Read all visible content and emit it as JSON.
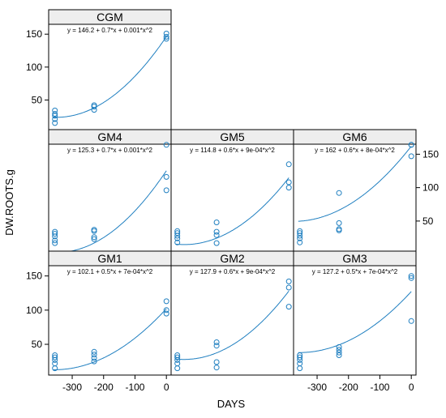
{
  "chart_data": {
    "type": "scatter",
    "xlabel": "DAYS",
    "ylabel": "DW.ROOTS.g",
    "xlim": [
      -375,
      15
    ],
    "ylim": [
      5,
      165
    ],
    "x_ticks": [
      -300,
      -200,
      -100,
      0
    ],
    "y_ticks": [
      50,
      100,
      150
    ],
    "x_tick_labels": [
      "-300",
      "-200",
      "-100",
      "0"
    ],
    "y_tick_labels": [
      "50",
      "100",
      "150"
    ],
    "point_color": "#1f7fc0",
    "line_color": "#1f7fc0",
    "strip_color": "#eeeeee",
    "panels": [
      {
        "name": "CGM",
        "equation": "y = 146.2 + 0.7*x + 0.001*x^2",
        "coef": [
          146.2,
          0.7,
          0.001
        ],
        "points": [
          [
            -355,
            15
          ],
          [
            -355,
            21
          ],
          [
            -355,
            26
          ],
          [
            -355,
            29
          ],
          [
            -355,
            34
          ],
          [
            -230,
            35
          ],
          [
            -230,
            40
          ],
          [
            -230,
            42
          ],
          [
            0,
            143
          ],
          [
            0,
            146
          ],
          [
            0,
            151
          ]
        ]
      },
      {
        "name": "GM4",
        "equation": "y = 125.3 + 0.7*x + 0.001*x^2",
        "coef": [
          125.3,
          0.7,
          0.001
        ],
        "points": [
          [
            -355,
            17
          ],
          [
            -355,
            21
          ],
          [
            -355,
            27
          ],
          [
            -355,
            31
          ],
          [
            -355,
            34
          ],
          [
            -230,
            23
          ],
          [
            -230,
            26
          ],
          [
            -230,
            35
          ],
          [
            -230,
            37
          ],
          [
            0,
            96
          ],
          [
            0,
            116
          ],
          [
            0,
            164
          ]
        ]
      },
      {
        "name": "GM5",
        "equation": "y = 114.8 + 0.6*x + 9e-04*x^2",
        "coef": [
          114.8,
          0.6,
          0.0009
        ],
        "points": [
          [
            -355,
            18
          ],
          [
            -355,
            24
          ],
          [
            -355,
            28
          ],
          [
            -355,
            32
          ],
          [
            -355,
            35
          ],
          [
            -230,
            17
          ],
          [
            -230,
            29
          ],
          [
            -230,
            34
          ],
          [
            -230,
            48
          ],
          [
            0,
            100
          ],
          [
            0,
            108
          ],
          [
            0,
            135
          ]
        ]
      },
      {
        "name": "GM6",
        "equation": "y = 162 + 0.6*x + 8e-04*x^2",
        "coef": [
          162,
          0.6,
          0.0008
        ],
        "points": [
          [
            -355,
            18
          ],
          [
            -355,
            24
          ],
          [
            -355,
            28
          ],
          [
            -355,
            32
          ],
          [
            -355,
            35
          ],
          [
            -230,
            36
          ],
          [
            -230,
            38
          ],
          [
            -230,
            47
          ],
          [
            -230,
            92
          ],
          [
            0,
            147
          ],
          [
            0,
            166
          ],
          [
            0,
            170
          ]
        ]
      },
      {
        "name": "GM1",
        "equation": "y = 102.1 + 0.5*x + 7e-04*x^2",
        "coef": [
          102.1,
          0.5,
          0.0007
        ],
        "points": [
          [
            -355,
            15
          ],
          [
            -355,
            22
          ],
          [
            -355,
            27
          ],
          [
            -355,
            31
          ],
          [
            -355,
            34
          ],
          [
            -230,
            25
          ],
          [
            -230,
            30
          ],
          [
            -230,
            35
          ],
          [
            -230,
            39
          ],
          [
            0,
            95
          ],
          [
            0,
            100
          ],
          [
            0,
            113
          ]
        ]
      },
      {
        "name": "GM2",
        "equation": "y = 127.9 + 0.6*x + 9e-04*x^2",
        "coef": [
          127.9,
          0.6,
          0.0009
        ],
        "points": [
          [
            -355,
            15
          ],
          [
            -355,
            22
          ],
          [
            -355,
            27
          ],
          [
            -355,
            31
          ],
          [
            -355,
            34
          ],
          [
            -230,
            16
          ],
          [
            -230,
            24
          ],
          [
            -230,
            48
          ],
          [
            -230,
            53
          ],
          [
            0,
            105
          ],
          [
            0,
            133
          ],
          [
            0,
            142
          ]
        ]
      },
      {
        "name": "GM3",
        "equation": "y = 127.2 + 0.5*x + 7e-04*x^2",
        "coef": [
          127.2,
          0.5,
          0.0007
        ],
        "points": [
          [
            -355,
            15
          ],
          [
            -355,
            22
          ],
          [
            -355,
            27
          ],
          [
            -355,
            31
          ],
          [
            -355,
            34
          ],
          [
            -230,
            34
          ],
          [
            -230,
            38
          ],
          [
            -230,
            42
          ],
          [
            -230,
            46
          ],
          [
            0,
            84
          ],
          [
            0,
            147
          ],
          [
            0,
            150
          ]
        ]
      }
    ]
  }
}
